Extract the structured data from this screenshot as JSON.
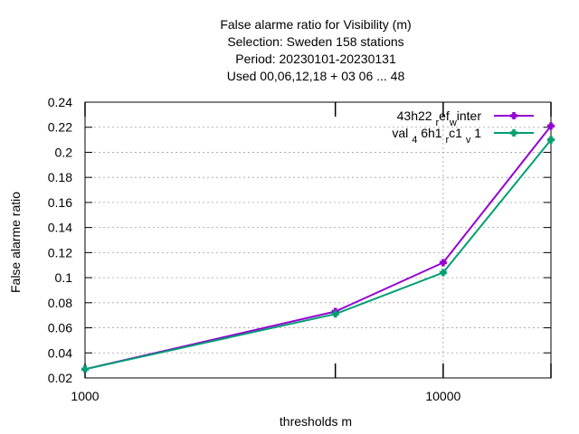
{
  "chart_data": {
    "type": "line",
    "title_lines": [
      "False alarme ratio  for Visibility (m)",
      "Selection: Sweden    158 stations",
      "Period: 20230101-20230131",
      "Used  00,06,12,18  + 03 06 ... 48"
    ],
    "xlabel": "thresholds m",
    "ylabel": "False alarme ratio",
    "x_scale": "log",
    "xlim": [
      1000,
      20000
    ],
    "ylim": [
      0.02,
      0.24
    ],
    "x_ticks": [
      {
        "value": 1000,
        "label": "1000"
      },
      {
        "value": 10000,
        "label": "10000"
      }
    ],
    "x_extra_ticks": [
      5000,
      20000
    ],
    "y_ticks": [
      {
        "value": 0.02,
        "label": "0.02"
      },
      {
        "value": 0.04,
        "label": "0.04"
      },
      {
        "value": 0.06,
        "label": "0.06"
      },
      {
        "value": 0.08,
        "label": "0.08"
      },
      {
        "value": 0.1,
        "label": "0.1"
      },
      {
        "value": 0.12,
        "label": "0.12"
      },
      {
        "value": 0.14,
        "label": "0.14"
      },
      {
        "value": 0.16,
        "label": "0.16"
      },
      {
        "value": 0.18,
        "label": "0.18"
      },
      {
        "value": 0.2,
        "label": "0.2"
      },
      {
        "value": 0.22,
        "label": "0.22"
      },
      {
        "value": 0.24,
        "label": "0.24"
      }
    ],
    "grid": true,
    "legend_position": "top-right",
    "series": [
      {
        "name": "43h22 ref winter",
        "legend_parts": [
          {
            "text": "43h22 ",
            "shift": "none"
          },
          {
            "text": "r",
            "shift": "sub"
          },
          {
            "text": "ef",
            "shift": "none"
          },
          {
            "text": "w",
            "shift": "sub"
          },
          {
            "text": "inter",
            "shift": "none"
          }
        ],
        "color": "#9400d3",
        "x": [
          1000,
          5000,
          10000,
          20000
        ],
        "y": [
          0.027,
          0.073,
          0.112,
          0.221
        ]
      },
      {
        "name": "val 4 6h1 rc1 v 1",
        "legend_parts": [
          {
            "text": "val ",
            "shift": "none"
          },
          {
            "text": "4",
            "shift": "sub"
          },
          {
            "text": " 6h1 ",
            "shift": "none"
          },
          {
            "text": "r",
            "shift": "sub"
          },
          {
            "text": "c1 ",
            "shift": "none"
          },
          {
            "text": "v",
            "shift": "sub"
          },
          {
            "text": " 1",
            "shift": "none"
          }
        ],
        "color": "#009e73",
        "x": [
          1000,
          5000,
          10000,
          20000
        ],
        "y": [
          0.027,
          0.071,
          0.104,
          0.21
        ]
      }
    ]
  }
}
